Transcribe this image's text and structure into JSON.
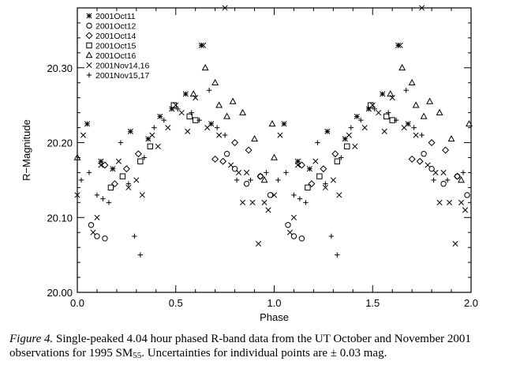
{
  "chart_data": {
    "type": "scatter",
    "xlabel": "Phase",
    "ylabel": "R−Magnitude",
    "xlim": [
      0.0,
      2.0
    ],
    "ylim": [
      20.0,
      20.38
    ],
    "xticks": [
      "0.0",
      "0.5",
      "1.0",
      "1.5",
      "2.0"
    ],
    "yticks": [
      "20.00",
      "20.10",
      "20.20",
      "20.30"
    ],
    "xtick_values": [
      0.0,
      0.5,
      1.0,
      1.5,
      2.0
    ],
    "ytick_values": [
      20.0,
      20.1,
      20.2,
      20.3
    ],
    "legend_position": "top-left",
    "series": [
      {
        "name": "2001Oct11",
        "marker": "asterisk",
        "points": [
          [
            0.05,
            20.225
          ],
          [
            0.12,
            20.175
          ],
          [
            0.18,
            20.165
          ],
          [
            0.27,
            20.215
          ],
          [
            0.36,
            20.205
          ],
          [
            0.42,
            20.235
          ],
          [
            0.48,
            20.245
          ],
          [
            0.55,
            20.265
          ],
          [
            0.63,
            20.33
          ],
          [
            0.68,
            20.225
          ]
        ]
      },
      {
        "name": "2001Oct12",
        "marker": "circle",
        "points": [
          [
            0.07,
            20.09
          ],
          [
            0.1,
            20.075
          ],
          [
            0.14,
            20.072
          ],
          [
            0.76,
            20.185
          ],
          [
            0.8,
            20.165
          ],
          [
            0.86,
            20.145
          ],
          [
            0.93,
            20.155
          ],
          [
            0.98,
            20.13
          ]
        ]
      },
      {
        "name": "2001Oct14",
        "marker": "diamond",
        "points": [
          [
            0.14,
            20.17
          ],
          [
            0.19,
            20.145
          ],
          [
            0.25,
            20.165
          ],
          [
            0.31,
            20.185
          ],
          [
            0.7,
            20.178
          ],
          [
            0.74,
            20.175
          ],
          [
            0.8,
            20.2
          ],
          [
            0.87,
            20.19
          ],
          [
            0.93,
            20.155
          ]
        ]
      },
      {
        "name": "2001Oct15",
        "marker": "square",
        "points": [
          [
            0.17,
            20.14
          ],
          [
            0.23,
            20.155
          ],
          [
            0.32,
            20.175
          ],
          [
            0.37,
            20.195
          ],
          [
            0.49,
            20.25
          ],
          [
            0.57,
            20.235
          ],
          [
            0.6,
            20.23
          ]
        ]
      },
      {
        "name": "2001Oct16",
        "marker": "triangle",
        "points": [
          [
            0.0,
            20.18
          ],
          [
            0.59,
            20.265
          ],
          [
            0.65,
            20.3
          ],
          [
            0.7,
            20.28
          ],
          [
            0.72,
            20.25
          ],
          [
            0.76,
            20.235
          ],
          [
            0.79,
            20.255
          ],
          [
            0.84,
            20.24
          ],
          [
            0.9,
            20.205
          ],
          [
            0.95,
            20.15
          ],
          [
            0.99,
            20.225
          ]
        ]
      },
      {
        "name": "2001Nov14,16",
        "marker": "x",
        "points": [
          [
            0.0,
            20.13
          ],
          [
            0.03,
            20.21
          ],
          [
            0.08,
            20.08
          ],
          [
            0.1,
            20.1
          ],
          [
            0.12,
            20.17
          ],
          [
            0.21,
            20.175
          ],
          [
            0.26,
            20.14
          ],
          [
            0.3,
            20.15
          ],
          [
            0.33,
            20.13
          ],
          [
            0.38,
            20.21
          ],
          [
            0.41,
            20.195
          ],
          [
            0.46,
            20.22
          ],
          [
            0.5,
            20.25
          ],
          [
            0.53,
            20.24
          ],
          [
            0.56,
            20.215
          ],
          [
            0.6,
            20.26
          ],
          [
            0.64,
            20.33
          ],
          [
            0.66,
            20.22
          ],
          [
            0.72,
            20.21
          ],
          [
            0.75,
            20.38
          ],
          [
            0.78,
            20.17
          ],
          [
            0.82,
            20.16
          ],
          [
            0.84,
            20.12
          ],
          [
            0.86,
            20.16
          ],
          [
            0.89,
            20.12
          ],
          [
            0.92,
            20.065
          ],
          [
            0.95,
            20.12
          ],
          [
            0.97,
            20.11
          ]
        ]
      },
      {
        "name": "2001Nov15,17",
        "marker": "plus",
        "points": [
          [
            0.02,
            20.15
          ],
          [
            0.06,
            20.16
          ],
          [
            0.1,
            20.13
          ],
          [
            0.13,
            20.125
          ],
          [
            0.16,
            20.12
          ],
          [
            0.22,
            20.2
          ],
          [
            0.26,
            20.145
          ],
          [
            0.29,
            20.075
          ],
          [
            0.32,
            20.05
          ],
          [
            0.34,
            20.18
          ],
          [
            0.39,
            20.22
          ],
          [
            0.44,
            20.23
          ],
          [
            0.51,
            20.245
          ],
          [
            0.58,
            20.24
          ],
          [
            0.62,
            20.23
          ],
          [
            0.67,
            20.27
          ],
          [
            0.71,
            20.22
          ],
          [
            0.75,
            20.21
          ],
          [
            0.81,
            20.15
          ],
          [
            0.88,
            20.15
          ],
          [
            0.96,
            20.16
          ]
        ]
      }
    ]
  },
  "caption": {
    "label": "Figure 4.",
    "text1": " Single-peaked 4.04 hour phased R-band data from the UT October and November 2001 observations for 1995 SM",
    "subscript": "55",
    "text2": ". Uncertainties for individual points are ± 0.03 mag."
  }
}
